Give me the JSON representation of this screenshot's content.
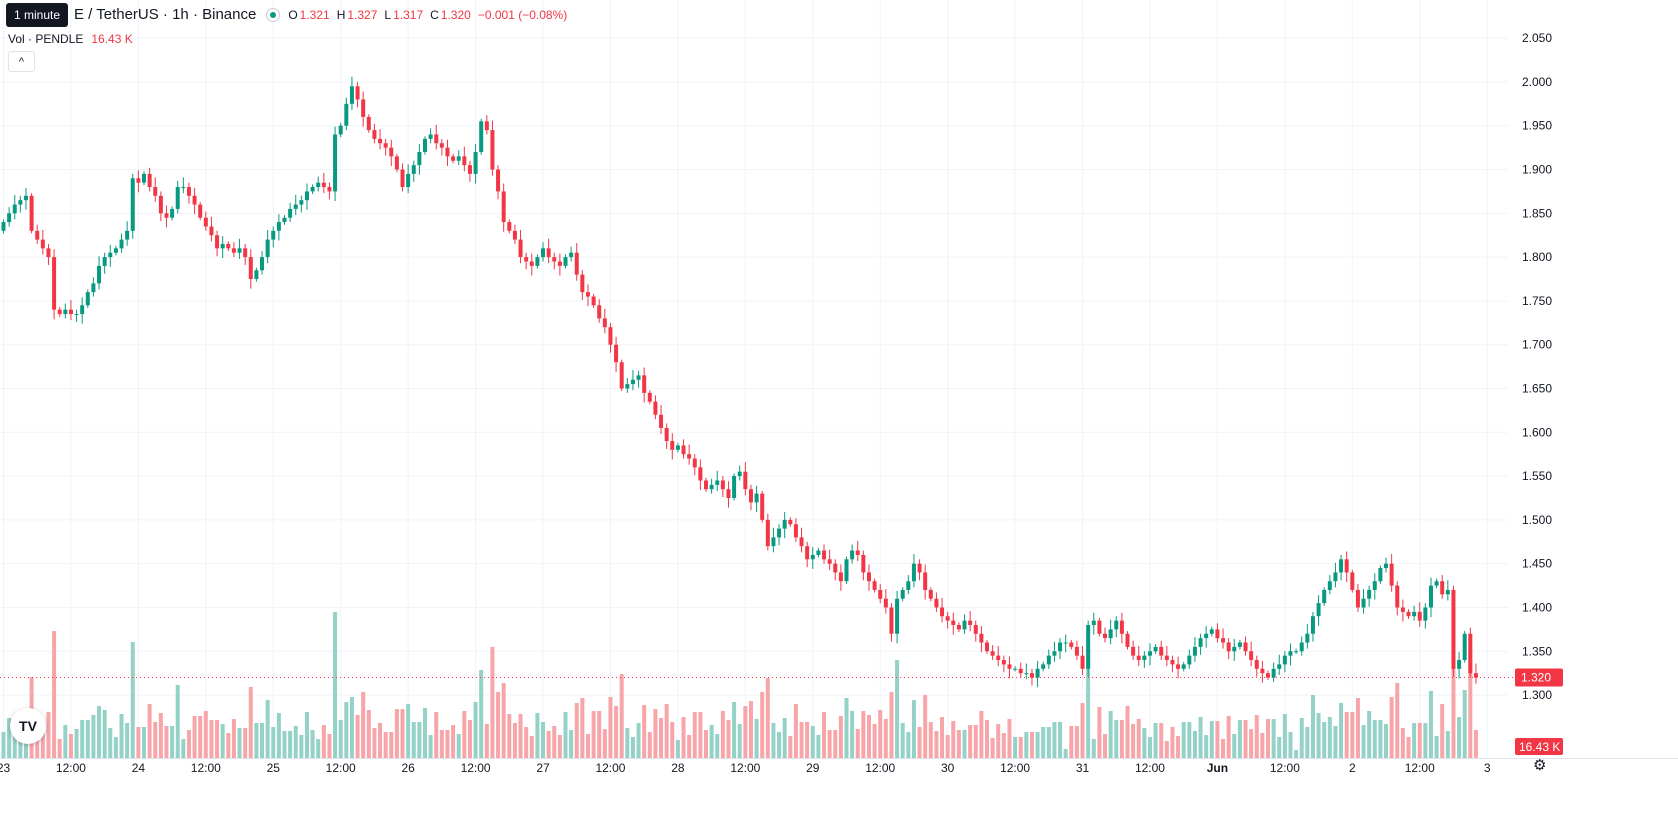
{
  "header": {
    "symbol_title": "E / TetherUS · 1h · Binance",
    "ohlc": [
      {
        "key": "O",
        "value": "1.321"
      },
      {
        "key": "H",
        "value": "1.327"
      },
      {
        "key": "L",
        "value": "1.317"
      },
      {
        "key": "C",
        "value": "1.320"
      }
    ],
    "change": "−0.001 (−0.08%)",
    "volume_label": "Vol · PENDLE",
    "volume_value": "16.43 K",
    "collapse_glyph": "^",
    "tooltip": "1 minute"
  },
  "logo_text": "TV",
  "settings_icon": "⚙",
  "colors": {
    "up": "#089981",
    "down": "#f23645",
    "vol_up": "#94d1c7",
    "vol_down": "#f7a5a9",
    "grid": "#f0f3fa"
  },
  "chart_data": {
    "type": "candlestick",
    "y_axis": {
      "range": [
        1.235,
        2.057
      ],
      "tick_values": [
        1.3,
        1.35,
        1.4,
        1.45,
        1.5,
        1.55,
        1.6,
        1.65,
        1.7,
        1.75,
        1.8,
        1.85,
        1.9,
        1.95,
        2.0,
        2.05
      ],
      "tick_labels": [
        "1.300",
        "1.350",
        "1.400",
        "1.450",
        "1.500",
        "1.550",
        "1.600",
        "1.650",
        "1.700",
        "1.750",
        "1.800",
        "1.850",
        "1.900",
        "1.950",
        "2.000",
        "2.050"
      ]
    },
    "x_axis": {
      "labels": [
        "23",
        "12:00",
        "24",
        "12:00",
        "25",
        "12:00",
        "26",
        "12:00",
        "27",
        "12:00",
        "28",
        "12:00",
        "29",
        "12:00",
        "30",
        "12:00",
        "31",
        "12:00",
        "Jun",
        "12:00",
        "2",
        "12:00",
        "3"
      ],
      "positions": [
        0,
        12,
        24,
        36,
        48,
        60,
        72,
        84,
        96,
        108,
        120,
        132,
        144,
        156,
        168,
        180,
        192,
        204,
        216,
        228,
        240,
        252,
        264
      ]
    },
    "last_price": {
      "value": 1.32,
      "label": "1.320"
    },
    "volume_label": "16.43 K",
    "closes": [
      1.84,
      1.85,
      1.86,
      1.865,
      1.87,
      1.83,
      1.82,
      1.81,
      1.8,
      1.74,
      1.735,
      1.74,
      1.735,
      1.735,
      1.745,
      1.76,
      1.77,
      1.79,
      1.8,
      1.805,
      1.81,
      1.82,
      1.83,
      1.89,
      1.885,
      1.895,
      1.88,
      1.87,
      1.85,
      1.845,
      1.855,
      1.88,
      1.88,
      1.87,
      1.86,
      1.845,
      1.835,
      1.825,
      1.81,
      1.815,
      1.81,
      1.805,
      1.81,
      1.8,
      1.775,
      1.785,
      1.8,
      1.82,
      1.83,
      1.84,
      1.845,
      1.855,
      1.86,
      1.865,
      1.875,
      1.88,
      1.885,
      1.88,
      1.875,
      1.94,
      1.95,
      1.975,
      1.995,
      1.98,
      1.96,
      1.945,
      1.935,
      1.93,
      1.925,
      1.915,
      1.9,
      1.88,
      1.895,
      1.905,
      1.92,
      1.935,
      1.94,
      1.93,
      1.925,
      1.915,
      1.91,
      1.915,
      1.905,
      1.895,
      1.92,
      1.955,
      1.945,
      1.9,
      1.875,
      1.84,
      1.83,
      1.82,
      1.8,
      1.795,
      1.79,
      1.8,
      1.81,
      1.8,
      1.795,
      1.79,
      1.8,
      1.805,
      1.78,
      1.76,
      1.755,
      1.745,
      1.73,
      1.72,
      1.7,
      1.68,
      1.65,
      1.655,
      1.66,
      1.665,
      1.645,
      1.635,
      1.62,
      1.605,
      1.59,
      1.58,
      1.585,
      1.575,
      1.57,
      1.56,
      1.545,
      1.535,
      1.54,
      1.545,
      1.535,
      1.525,
      1.55,
      1.555,
      1.535,
      1.52,
      1.53,
      1.5,
      1.47,
      1.48,
      1.49,
      1.5,
      1.495,
      1.48,
      1.47,
      1.455,
      1.46,
      1.465,
      1.455,
      1.45,
      1.44,
      1.43,
      1.455,
      1.465,
      1.46,
      1.44,
      1.43,
      1.42,
      1.41,
      1.4,
      1.37,
      1.41,
      1.42,
      1.43,
      1.45,
      1.44,
      1.42,
      1.41,
      1.4,
      1.39,
      1.385,
      1.38,
      1.375,
      1.385,
      1.38,
      1.37,
      1.36,
      1.35,
      1.345,
      1.34,
      1.335,
      1.33,
      1.33,
      1.325,
      1.325,
      1.32,
      1.33,
      1.335,
      1.345,
      1.35,
      1.36,
      1.36,
      1.355,
      1.345,
      1.33,
      1.38,
      1.385,
      1.37,
      1.365,
      1.375,
      1.385,
      1.37,
      1.355,
      1.345,
      1.34,
      1.345,
      1.35,
      1.355,
      1.345,
      1.34,
      1.335,
      1.33,
      1.335,
      1.345,
      1.355,
      1.365,
      1.37,
      1.375,
      1.365,
      1.36,
      1.35,
      1.355,
      1.36,
      1.35,
      1.34,
      1.33,
      1.325,
      1.32,
      1.33,
      1.335,
      1.345,
      1.35,
      1.35,
      1.36,
      1.37,
      1.39,
      1.405,
      1.42,
      1.43,
      1.44,
      1.455,
      1.44,
      1.42,
      1.4,
      1.41,
      1.42,
      1.43,
      1.445,
      1.45,
      1.425,
      1.4,
      1.395,
      1.39,
      1.395,
      1.385,
      1.4,
      1.425,
      1.43,
      1.415,
      1.42,
      1.33,
      1.34,
      1.37,
      1.325,
      1.32
    ]
  }
}
